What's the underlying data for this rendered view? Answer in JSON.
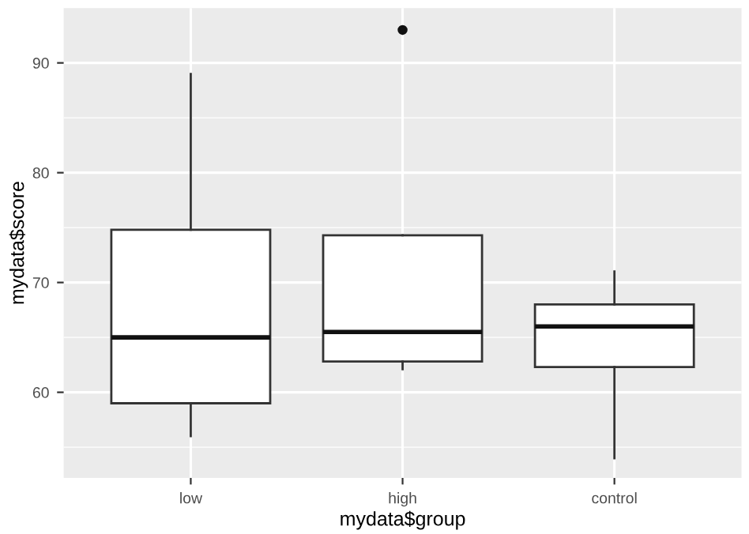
{
  "chart_data": {
    "type": "box",
    "xlabel": "mydata$group",
    "ylabel": "mydata$score",
    "categories": [
      "low",
      "high",
      "control"
    ],
    "boxes": [
      {
        "low": 56,
        "q1": 59,
        "median": 65,
        "q3": 74.8,
        "high": 89
      },
      {
        "low": 62.1,
        "q1": 62.8,
        "median": 65.5,
        "q3": 74.3,
        "high": 74.3,
        "outliers": [
          93
        ]
      },
      {
        "low": 54,
        "q1": 62.3,
        "median": 66,
        "q3": 68,
        "high": 71
      }
    ],
    "ylim": [
      52.2,
      95
    ],
    "yticks": [
      60,
      70,
      80,
      90
    ],
    "grid": true
  }
}
